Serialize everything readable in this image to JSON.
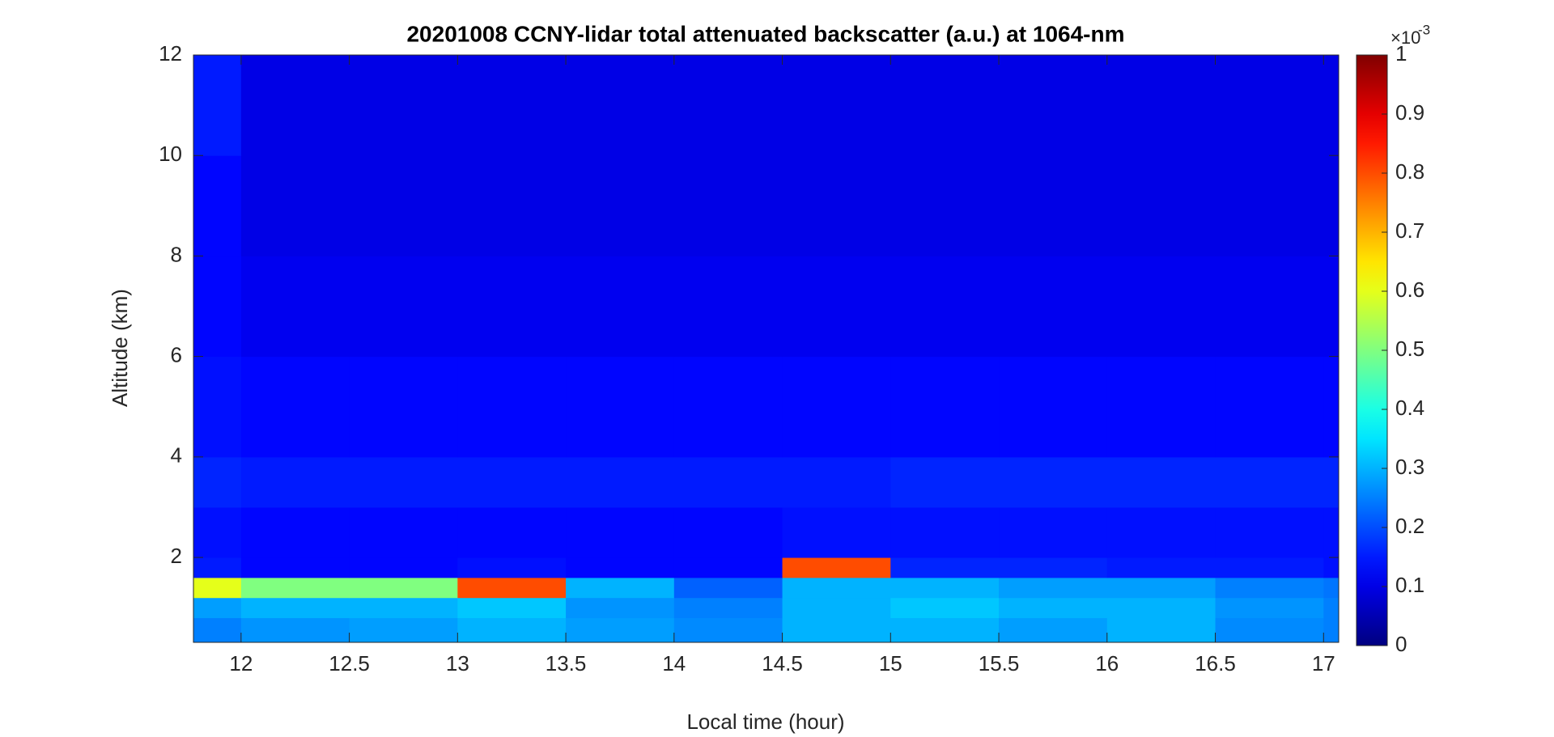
{
  "chart_data": {
    "type": "heatmap",
    "title": "20201008 CCNY-lidar total attenuated backscatter (a.u.) at 1064-nm",
    "x_label": "Local time (hour)",
    "y_label": "Altitude (km)",
    "colormap": "jet",
    "x_edges": [
      11.78,
      12,
      12.5,
      13,
      13.5,
      14,
      14.5,
      15,
      15.5,
      16,
      16.5,
      17,
      17.07
    ],
    "y_edges": [
      0.31,
      0.8,
      1.2,
      1.6,
      2,
      3,
      4,
      6,
      8,
      10,
      12
    ],
    "z": [
      [
        0.25,
        0.27,
        0.28,
        0.3,
        0.28,
        0.26,
        0.3,
        0.3,
        0.28,
        0.3,
        0.26,
        0.25
      ],
      [
        0.28,
        0.3,
        0.3,
        0.32,
        0.27,
        0.25,
        0.3,
        0.32,
        0.3,
        0.3,
        0.27,
        0.25
      ],
      [
        0.6,
        0.5,
        0.5,
        0.8,
        0.3,
        0.22,
        0.3,
        0.3,
        0.28,
        0.28,
        0.25,
        0.24
      ],
      [
        0.15,
        0.13,
        0.13,
        0.14,
        0.13,
        0.13,
        0.8,
        0.16,
        0.16,
        0.15,
        0.15,
        0.14
      ],
      [
        0.14,
        0.13,
        0.13,
        0.13,
        0.13,
        0.13,
        0.14,
        0.14,
        0.14,
        0.14,
        0.14,
        0.14
      ],
      [
        0.16,
        0.15,
        0.15,
        0.15,
        0.15,
        0.15,
        0.15,
        0.16,
        0.16,
        0.16,
        0.16,
        0.16
      ],
      [
        0.14,
        0.13,
        0.13,
        0.13,
        0.13,
        0.13,
        0.13,
        0.13,
        0.13,
        0.13,
        0.13,
        0.13
      ],
      [
        0.13,
        0.11,
        0.11,
        0.11,
        0.11,
        0.11,
        0.11,
        0.11,
        0.11,
        0.11,
        0.11,
        0.11
      ],
      [
        0.13,
        0.1,
        0.1,
        0.1,
        0.1,
        0.1,
        0.1,
        0.1,
        0.1,
        0.1,
        0.1,
        0.1
      ],
      [
        0.15,
        0.1,
        0.1,
        0.1,
        0.1,
        0.1,
        0.1,
        0.1,
        0.1,
        0.1,
        0.1,
        0.1
      ]
    ],
    "xlim": [
      11.78,
      17.07
    ],
    "xticks": [
      12,
      12.5,
      13,
      13.5,
      14,
      14.5,
      15,
      15.5,
      16,
      16.5,
      17
    ],
    "ylim": [
      0.31,
      12
    ],
    "yticks": [
      2,
      4,
      6,
      8,
      10,
      12
    ],
    "clim": [
      0,
      1
    ],
    "cticks": [
      0,
      0.1,
      0.2,
      0.3,
      0.4,
      0.5,
      0.6,
      0.7,
      0.8,
      0.9,
      1
    ],
    "colorbar_multiplier": "×10",
    "colorbar_exponent": "-3"
  }
}
